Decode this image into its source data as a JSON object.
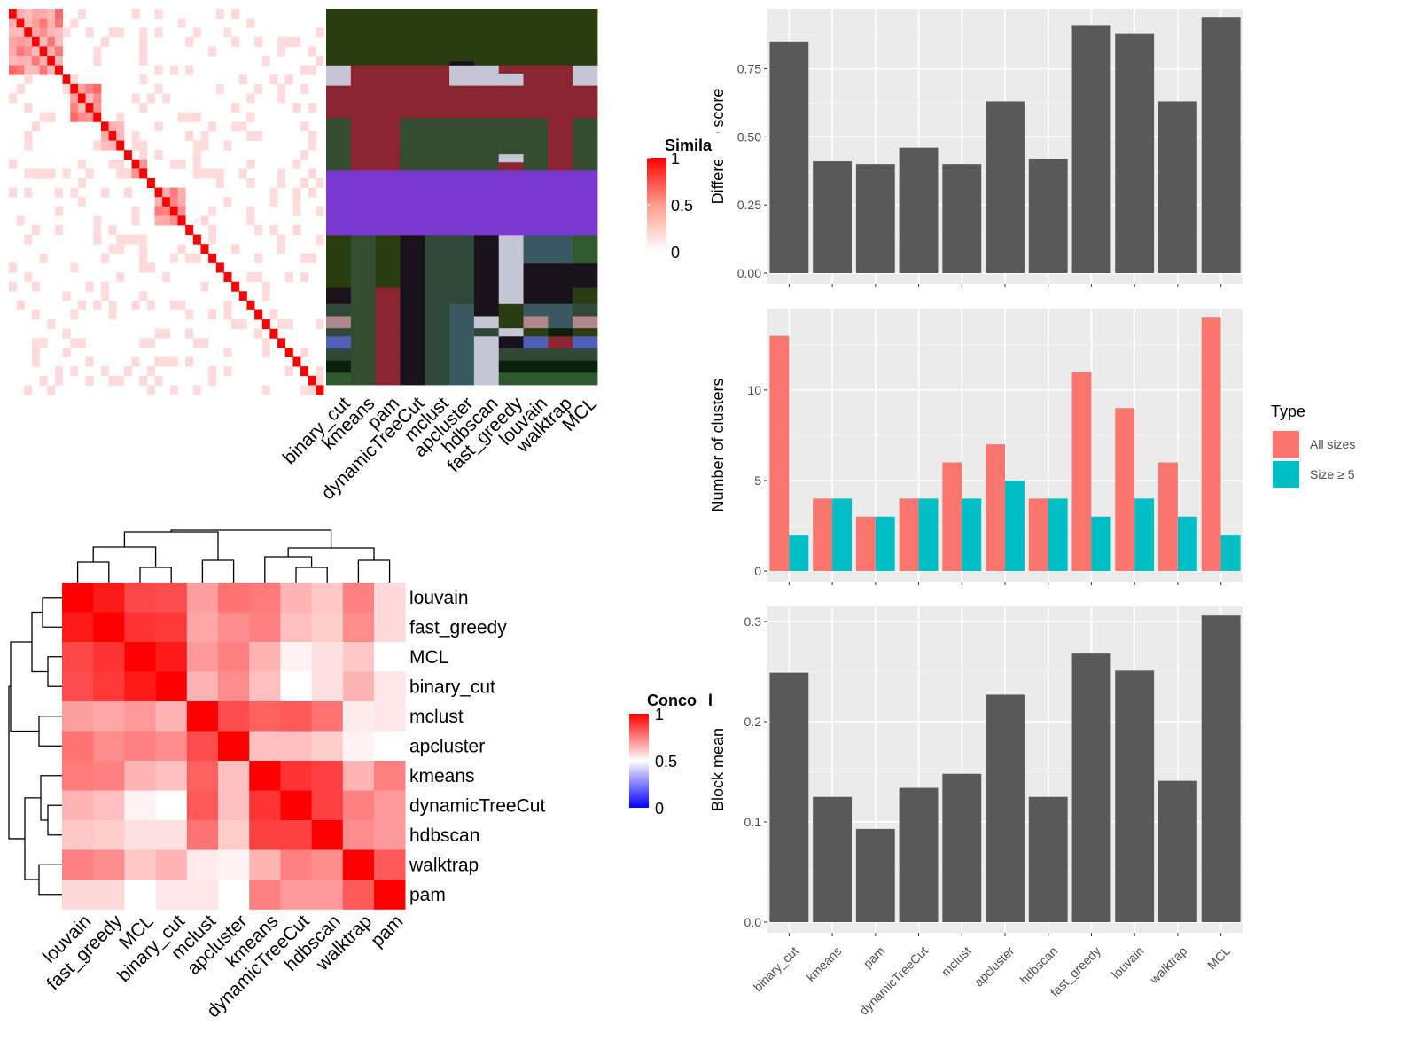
{
  "colors": {
    "panel_bg": "#ebebeb",
    "grid": "#ffffff",
    "bar": "#595959",
    "all_sizes": "#f8766d",
    "size_ge5": "#00bfc4",
    "heat_high": "#ff0000",
    "heat_low": "#ffffff",
    "heat_neg": "#0000ff"
  },
  "methods": [
    "binary_cut",
    "kmeans",
    "pam",
    "dynamicTreeCut",
    "mclust",
    "apcluster",
    "hdbscan",
    "fast_greedy",
    "louvain",
    "walktrap",
    "MCL"
  ],
  "similarity_heatmap": {
    "legend_title": "Simila",
    "legend_ticks": [
      "1",
      "0.5",
      "0"
    ],
    "diagonal_blocks": [
      [
        0,
        1,
        2,
        3,
        4,
        5,
        6
      ],
      [
        7
      ],
      [
        8,
        9,
        10,
        11
      ],
      [
        12,
        13,
        14
      ],
      [
        15
      ],
      [
        16,
        17
      ],
      [
        18
      ],
      [
        19,
        20,
        21,
        22
      ],
      [
        23
      ],
      [
        24
      ],
      [
        25
      ],
      [
        26
      ],
      [
        27
      ],
      [
        28
      ],
      [
        29
      ],
      [
        30
      ],
      [
        31
      ],
      [
        32
      ],
      [
        33
      ],
      [
        34
      ],
      [
        35
      ],
      [
        36
      ],
      [
        37
      ],
      [
        38
      ],
      [
        39
      ],
      [
        40
      ]
    ]
  },
  "cluster_assignment_heatmap": {
    "labels": [
      "binary_cut",
      "kmeans",
      "pam",
      "dynamicTreeCut",
      "mclust",
      "apcluster",
      "hdbscan",
      "fast_greedy",
      "louvain",
      "walktrap",
      "MCL"
    ],
    "cluster_colors": [
      "#2a3d10",
      "#8b2530",
      "#c5c5d5",
      "#344d32",
      "#7b38d0",
      "#1a121a",
      "#304838",
      "#b0888c",
      "#5060b8",
      "#0a200c",
      "#2e5a2e",
      "#3a5860"
    ],
    "rows": [
      {
        "span": 13,
        "cells": [
          0,
          0,
          0,
          0,
          0,
          0,
          0,
          0,
          0,
          0,
          0
        ]
      },
      {
        "span": 1,
        "cells": [
          0,
          0,
          0,
          0,
          0,
          5,
          0,
          0,
          0,
          0,
          0
        ]
      },
      {
        "span": 2,
        "cells": [
          2,
          1,
          1,
          1,
          1,
          2,
          2,
          1,
          1,
          1,
          2
        ]
      },
      {
        "span": 3,
        "cells": [
          2,
          1,
          1,
          1,
          1,
          2,
          2,
          2,
          1,
          1,
          2
        ]
      },
      {
        "span": 8,
        "cells": [
          1,
          1,
          1,
          1,
          1,
          1,
          1,
          1,
          1,
          1,
          1
        ]
      },
      {
        "span": 9,
        "cells": [
          3,
          1,
          1,
          3,
          3,
          3,
          3,
          3,
          3,
          1,
          3
        ]
      },
      {
        "span": 2,
        "cells": [
          3,
          1,
          1,
          3,
          3,
          3,
          3,
          2,
          3,
          1,
          3
        ]
      },
      {
        "span": 2,
        "cells": [
          3,
          1,
          1,
          3,
          3,
          3,
          3,
          1,
          3,
          1,
          3
        ]
      },
      {
        "span": 16,
        "cells": [
          4,
          4,
          4,
          4,
          4,
          4,
          4,
          4,
          4,
          4,
          4
        ]
      },
      {
        "span": 7,
        "cells": [
          0,
          3,
          0,
          5,
          6,
          6,
          5,
          2,
          11,
          11,
          10
        ]
      },
      {
        "span": 6,
        "cells": [
          0,
          3,
          0,
          5,
          6,
          6,
          5,
          2,
          5,
          5,
          5
        ]
      },
      {
        "span": 4,
        "cells": [
          5,
          3,
          1,
          5,
          6,
          6,
          5,
          2,
          5,
          5,
          0
        ]
      },
      {
        "span": 3,
        "cells": [
          6,
          3,
          1,
          5,
          6,
          11,
          5,
          0,
          11,
          11,
          6
        ]
      },
      {
        "span": 3,
        "cells": [
          7,
          3,
          1,
          5,
          6,
          11,
          2,
          0,
          7,
          11,
          7
        ]
      },
      {
        "span": 2,
        "cells": [
          6,
          3,
          1,
          5,
          6,
          11,
          6,
          2,
          0,
          9,
          0
        ]
      },
      {
        "span": 3,
        "cells": [
          8,
          3,
          1,
          5,
          6,
          11,
          2,
          5,
          8,
          1,
          8
        ]
      },
      {
        "span": 3,
        "cells": [
          6,
          3,
          1,
          5,
          6,
          11,
          2,
          6,
          6,
          6,
          6
        ]
      },
      {
        "span": 3,
        "cells": [
          9,
          3,
          1,
          5,
          6,
          11,
          2,
          9,
          9,
          9,
          9
        ]
      },
      {
        "span": 3,
        "cells": [
          10,
          3,
          1,
          5,
          6,
          11,
          2,
          10,
          10,
          10,
          10
        ]
      }
    ]
  },
  "concordance_heatmap": {
    "legend_title": "Concord",
    "legend_ticks": [
      "1",
      "0.5",
      "0"
    ],
    "order": [
      "louvain",
      "fast_greedy",
      "MCL",
      "binary_cut",
      "mclust",
      "apcluster",
      "kmeans",
      "dynamicTreeCut",
      "hdbscan",
      "walktrap",
      "pam"
    ]
  },
  "chart_data": [
    {
      "type": "bar",
      "title": "",
      "xlabel": "",
      "ylabel": "Difference score",
      "categories": [
        "binary_cut",
        "kmeans",
        "pam",
        "dynamicTreeCut",
        "mclust",
        "apcluster",
        "hdbscan",
        "fast_greedy",
        "louvain",
        "walktrap",
        "MCL"
      ],
      "values": [
        0.85,
        0.41,
        0.4,
        0.46,
        0.4,
        0.63,
        0.42,
        0.91,
        0.88,
        0.63,
        0.94
      ],
      "ylim": [
        0,
        0.97
      ],
      "yticks": [
        "0.00",
        "0.25",
        "0.50",
        "0.75"
      ],
      "show_x_labels": false
    },
    {
      "type": "bar",
      "title": "",
      "xlabel": "",
      "ylabel": "Number of clusters",
      "categories": [
        "binary_cut",
        "kmeans",
        "pam",
        "dynamicTreeCut",
        "mclust",
        "apcluster",
        "hdbscan",
        "fast_greedy",
        "louvain",
        "walktrap",
        "MCL"
      ],
      "series": [
        {
          "name": "All sizes",
          "values": [
            13,
            4,
            3,
            4,
            6,
            7,
            4,
            11,
            9,
            6,
            14
          ]
        },
        {
          "name": "Size ≥ 5",
          "values": [
            2,
            4,
            3,
            4,
            4,
            5,
            4,
            3,
            4,
            3,
            2
          ]
        }
      ],
      "ylim": [
        0,
        14.5
      ],
      "yticks": [
        "0",
        "5",
        "10"
      ],
      "legend": {
        "title": "Type",
        "position": "right"
      },
      "show_x_labels": false
    },
    {
      "type": "bar",
      "title": "",
      "xlabel": "",
      "ylabel": "Block mean",
      "categories": [
        "binary_cut",
        "kmeans",
        "pam",
        "dynamicTreeCut",
        "mclust",
        "apcluster",
        "hdbscan",
        "fast_greedy",
        "louvain",
        "walktrap",
        "MCL"
      ],
      "values": [
        0.249,
        0.125,
        0.093,
        0.134,
        0.148,
        0.227,
        0.125,
        0.268,
        0.251,
        0.141,
        0.306
      ],
      "ylim": [
        0,
        0.315
      ],
      "yticks": [
        "0.0",
        "0.1",
        "0.2",
        "0.3"
      ],
      "show_x_labels": true
    },
    {
      "type": "heatmap",
      "title": "",
      "rows": [
        "louvain",
        "fast_greedy",
        "MCL",
        "binary_cut",
        "mclust",
        "apcluster",
        "kmeans",
        "dynamicTreeCut",
        "hdbscan",
        "walktrap",
        "pam"
      ],
      "cols": [
        "louvain",
        "fast_greedy",
        "MCL",
        "binary_cut",
        "mclust",
        "apcluster",
        "kmeans",
        "dynamicTreeCut",
        "hdbscan",
        "walktrap",
        "pam"
      ],
      "values": [
        [
          1.0,
          0.9,
          0.72,
          0.7,
          0.38,
          0.55,
          0.52,
          0.3,
          0.22,
          0.5,
          0.15
        ],
        [
          0.9,
          1.0,
          0.8,
          0.78,
          0.35,
          0.45,
          0.5,
          0.25,
          0.2,
          0.45,
          0.15
        ],
        [
          0.72,
          0.8,
          1.0,
          0.9,
          0.4,
          0.5,
          0.3,
          0.05,
          0.12,
          0.22,
          0.0
        ],
        [
          0.7,
          0.78,
          0.9,
          1.0,
          0.3,
          0.45,
          0.25,
          0.0,
          0.12,
          0.3,
          0.1
        ],
        [
          0.38,
          0.35,
          0.4,
          0.3,
          1.0,
          0.7,
          0.62,
          0.65,
          0.55,
          0.08,
          0.1
        ],
        [
          0.55,
          0.45,
          0.5,
          0.45,
          0.7,
          1.0,
          0.25,
          0.25,
          0.2,
          0.05,
          0.0
        ],
        [
          0.52,
          0.5,
          0.3,
          0.25,
          0.62,
          0.25,
          1.0,
          0.8,
          0.75,
          0.3,
          0.5
        ],
        [
          0.3,
          0.25,
          0.05,
          0.0,
          0.65,
          0.25,
          0.8,
          1.0,
          0.75,
          0.5,
          0.4
        ],
        [
          0.22,
          0.2,
          0.12,
          0.12,
          0.55,
          0.2,
          0.75,
          0.75,
          1.0,
          0.45,
          0.4
        ],
        [
          0.5,
          0.45,
          0.22,
          0.3,
          0.08,
          0.05,
          0.3,
          0.5,
          0.45,
          1.0,
          0.65
        ],
        [
          0.15,
          0.15,
          0.0,
          0.1,
          0.1,
          0.0,
          0.5,
          0.4,
          0.4,
          0.65,
          1.0
        ]
      ],
      "scale": [
        0,
        1
      ]
    }
  ]
}
